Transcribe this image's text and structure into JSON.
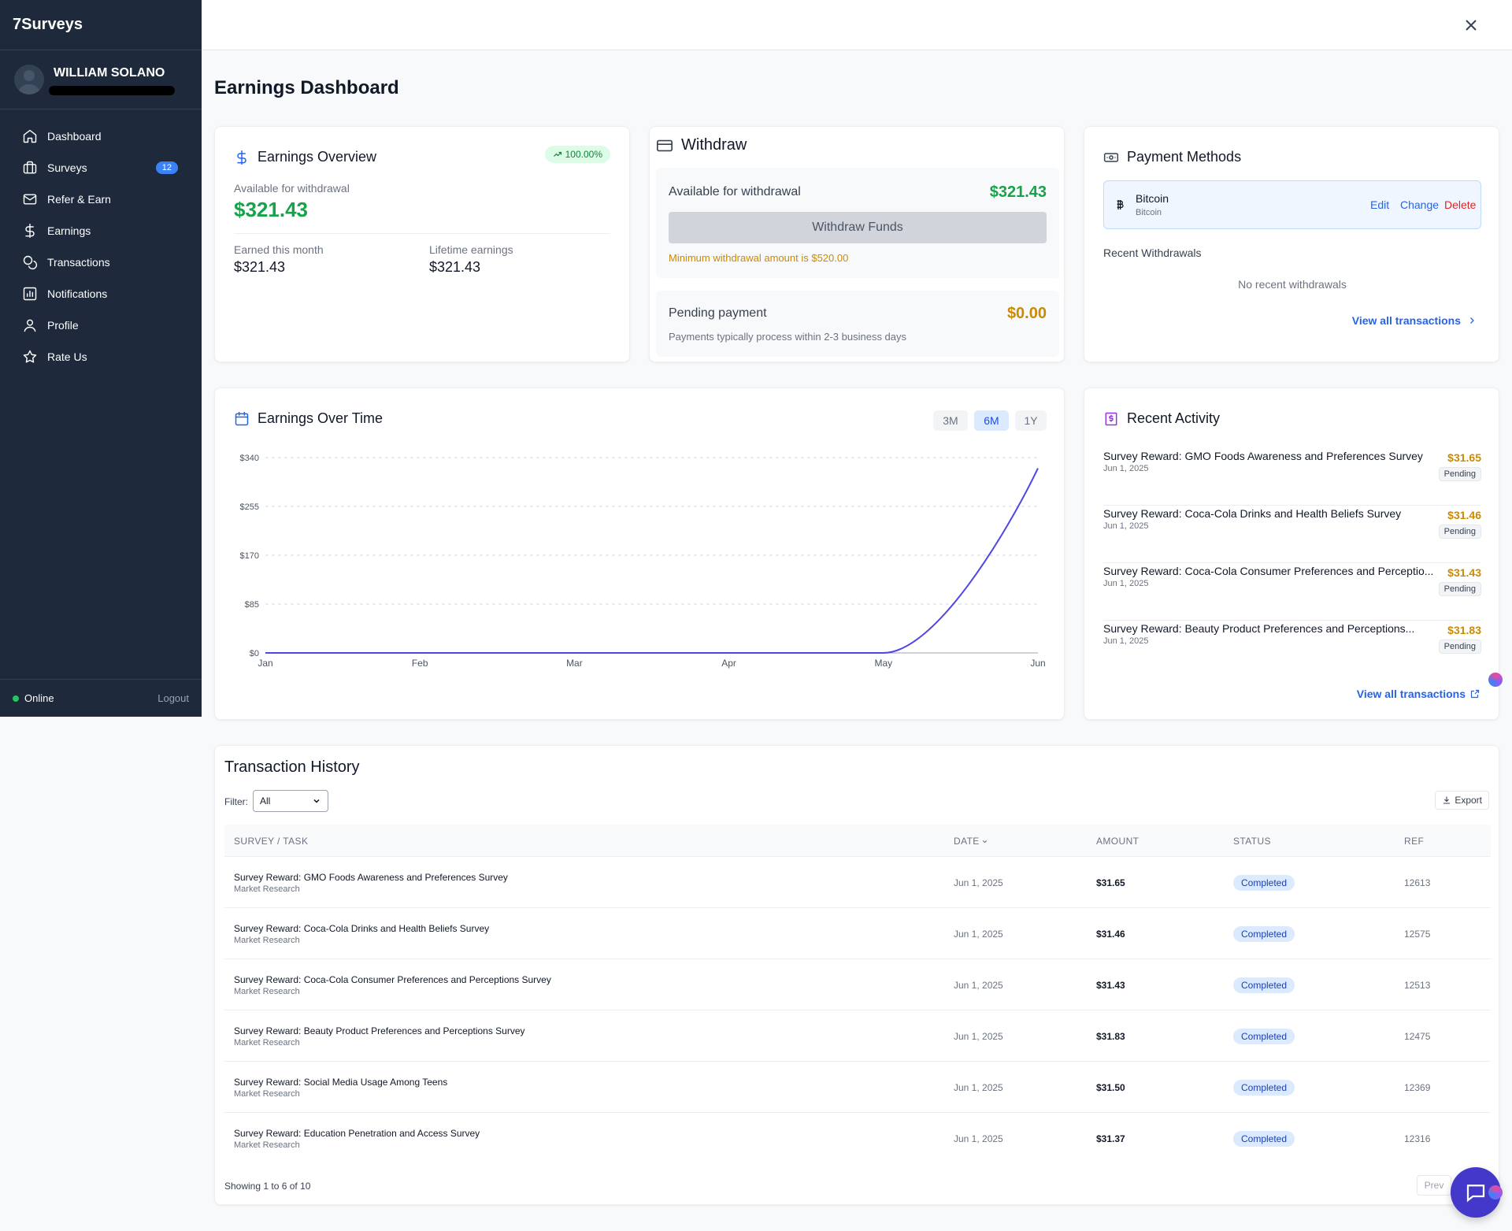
{
  "app": {
    "name": "7Surveys"
  },
  "user": {
    "name": "WILLIAM SOLANO"
  },
  "nav": [
    {
      "label": "Dashboard",
      "icon": "home-icon"
    },
    {
      "label": "Surveys",
      "icon": "briefcase-icon",
      "badge": "12"
    },
    {
      "label": "Refer & Earn",
      "icon": "mail-icon"
    },
    {
      "label": "Earnings",
      "icon": "dollar-icon"
    },
    {
      "label": "Transactions",
      "icon": "coins-icon"
    },
    {
      "label": "Notifications",
      "icon": "chart-icon"
    },
    {
      "label": "Profile",
      "icon": "user-icon"
    },
    {
      "label": "Rate Us",
      "icon": "star-icon"
    }
  ],
  "footer": {
    "status": "Online",
    "logout": "Logout"
  },
  "page": {
    "title": "Earnings Dashboard"
  },
  "overview": {
    "title": "Earnings Overview",
    "growth": "100.00%",
    "available_label": "Available for withdrawal",
    "available_value": "$321.43",
    "month_label": "Earned this month",
    "month_value": "$321.43",
    "lifetime_label": "Lifetime earnings",
    "lifetime_value": "$321.43"
  },
  "withdraw": {
    "title": "Withdraw",
    "available_label": "Available for withdrawal",
    "available_value": "$321.43",
    "button": "Withdraw Funds",
    "minimum_note": "Minimum withdrawal amount is $520.00",
    "pending_label": "Pending payment",
    "pending_value": "$0.00",
    "pending_note": "Payments typically process within 2-3 business days"
  },
  "payment_methods": {
    "title": "Payment Methods",
    "method_name": "Bitcoin",
    "method_sub": "Bitcoin",
    "edit": "Edit",
    "change": "Change",
    "delete": "Delete",
    "recent_title": "Recent Withdrawals",
    "empty": "No recent withdrawals",
    "view_all": "View all transactions"
  },
  "earnings_chart": {
    "title": "Earnings Over Time",
    "ranges": [
      "3M",
      "6M",
      "1Y"
    ],
    "selected_range": "6M"
  },
  "chart_data": {
    "type": "line",
    "x": [
      "Jan",
      "Feb",
      "Mar",
      "Apr",
      "May",
      "Jun"
    ],
    "series": [
      {
        "values": [
          0,
          0,
          0,
          0,
          0,
          321.43
        ]
      }
    ],
    "ylim": [
      0,
      340
    ],
    "yticks": [
      "$0",
      "$85",
      "$170",
      "$255",
      "$340"
    ],
    "grid": true,
    "color": "#4f46e5"
  },
  "recent_activity": {
    "title": "Recent Activity",
    "items": [
      {
        "title": "Survey Reward: GMO Foods Awareness and Preferences Survey",
        "date": "Jun 1, 2025",
        "amount": "$31.65",
        "status": "Pending"
      },
      {
        "title": "Survey Reward: Coca-Cola Drinks and Health Beliefs Survey",
        "date": "Jun 1, 2025",
        "amount": "$31.46",
        "status": "Pending"
      },
      {
        "title": "Survey Reward: Coca-Cola Consumer Preferences and Perceptio...",
        "date": "Jun 1, 2025",
        "amount": "$31.43",
        "status": "Pending"
      },
      {
        "title": "Survey Reward: Beauty Product Preferences and Perceptions...",
        "date": "Jun 1, 2025",
        "amount": "$31.83",
        "status": "Pending"
      }
    ],
    "view_all": "View all transactions"
  },
  "history": {
    "title": "Transaction History",
    "filter_label": "Filter:",
    "filter_value": "All",
    "export": "Export",
    "columns": [
      "SURVEY / TASK",
      "DATE",
      "AMOUNT",
      "STATUS",
      "REF"
    ],
    "rows": [
      {
        "title": "Survey Reward: GMO Foods Awareness and Preferences Survey",
        "category": "Market Research",
        "date": "Jun 1, 2025",
        "amount": "$31.65",
        "status": "Completed",
        "ref": "12613"
      },
      {
        "title": "Survey Reward: Coca-Cola Drinks and Health Beliefs Survey",
        "category": "Market Research",
        "date": "Jun 1, 2025",
        "amount": "$31.46",
        "status": "Completed",
        "ref": "12575"
      },
      {
        "title": "Survey Reward: Coca-Cola Consumer Preferences and Perceptions Survey",
        "category": "Market Research",
        "date": "Jun 1, 2025",
        "amount": "$31.43",
        "status": "Completed",
        "ref": "12513"
      },
      {
        "title": "Survey Reward: Beauty Product Preferences and Perceptions Survey",
        "category": "Market Research",
        "date": "Jun 1, 2025",
        "amount": "$31.83",
        "status": "Completed",
        "ref": "12475"
      },
      {
        "title": "Survey Reward: Social Media Usage Among Teens",
        "category": "Market Research",
        "date": "Jun 1, 2025",
        "amount": "$31.50",
        "status": "Completed",
        "ref": "12369"
      },
      {
        "title": "Survey Reward: Education Penetration and Access Survey",
        "category": "Market Research",
        "date": "Jun 1, 2025",
        "amount": "$31.37",
        "status": "Completed",
        "ref": "12316"
      }
    ],
    "summary": "Showing 1 to 6 of 10",
    "prev": "Prev"
  }
}
